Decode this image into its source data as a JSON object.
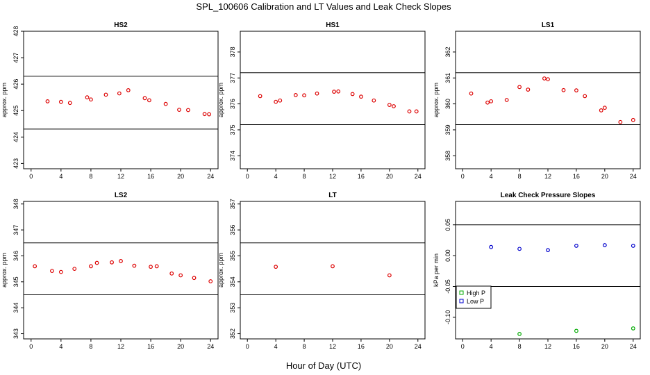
{
  "figure": {
    "title": "SPL_100606  Calibration and LT Values and Leak Check Slopes",
    "xlabel": "Hour of Day (UTC)"
  },
  "chart_data": [
    {
      "type": "scatter",
      "title": "HS2",
      "ylabel": "approx. ppm",
      "xlim": [
        -1,
        25
      ],
      "ylim": [
        422.8,
        428.0
      ],
      "xticks": [
        "0",
        "4",
        "8",
        "12",
        "16",
        "20",
        "24"
      ],
      "yticks": [
        "423",
        "424",
        "425",
        "426",
        "427",
        "428"
      ],
      "hlines": [
        426.3,
        424.3
      ],
      "series": [
        {
          "color": "#dd0000",
          "x": [
            2.2,
            4.0,
            5.2,
            7.5,
            8.0,
            10.0,
            11.8,
            13.0,
            15.2,
            15.8,
            18.0,
            19.8,
            21.0,
            23.2,
            23.8
          ],
          "y": [
            425.35,
            425.33,
            425.29,
            425.5,
            425.42,
            425.6,
            425.65,
            425.77,
            425.47,
            425.39,
            425.25,
            425.03,
            425.02,
            424.87,
            424.86
          ]
        }
      ]
    },
    {
      "type": "scatter",
      "title": "HS1",
      "ylabel": "approx. ppm",
      "xlim": [
        -1,
        25
      ],
      "ylim": [
        373.5,
        378.8
      ],
      "xticks": [
        "0",
        "4",
        "8",
        "12",
        "16",
        "20",
        "24"
      ],
      "yticks": [
        "374",
        "375",
        "376",
        "377",
        "378"
      ],
      "hlines": [
        377.2,
        375.2
      ],
      "series": [
        {
          "color": "#dd0000",
          "x": [
            1.8,
            4.0,
            4.6,
            6.8,
            8.0,
            9.8,
            12.2,
            12.8,
            14.8,
            16.0,
            17.8,
            20.0,
            20.6,
            22.8,
            23.8
          ],
          "y": [
            376.3,
            376.08,
            376.13,
            376.34,
            376.33,
            376.4,
            376.47,
            376.48,
            376.38,
            376.28,
            376.13,
            375.96,
            375.91,
            375.71,
            375.71
          ]
        }
      ]
    },
    {
      "type": "scatter",
      "title": "LS1",
      "ylabel": "approx. ppm",
      "xlim": [
        -1,
        25
      ],
      "ylim": [
        357.5,
        362.8
      ],
      "xticks": [
        "0",
        "4",
        "8",
        "12",
        "16",
        "20",
        "24"
      ],
      "yticks": [
        "358",
        "359",
        "360",
        "361",
        "362"
      ],
      "hlines": [
        361.2,
        359.2
      ],
      "series": [
        {
          "color": "#dd0000",
          "x": [
            1.2,
            3.5,
            4.0,
            6.2,
            8.0,
            9.2,
            11.5,
            12.0,
            14.2,
            16.0,
            17.2,
            19.5,
            20.0,
            22.2,
            24.0
          ],
          "y": [
            360.4,
            360.05,
            360.1,
            360.15,
            360.65,
            360.55,
            360.98,
            360.95,
            360.53,
            360.52,
            360.3,
            359.75,
            359.85,
            359.3,
            359.38
          ]
        }
      ]
    },
    {
      "type": "scatter",
      "title": "LS2",
      "ylabel": "approx. ppm",
      "xlim": [
        -1,
        25
      ],
      "ylim": [
        342.8,
        348.1
      ],
      "xticks": [
        "0",
        "4",
        "8",
        "12",
        "16",
        "20",
        "24"
      ],
      "yticks": [
        "343",
        "344",
        "345",
        "346",
        "347",
        "348"
      ],
      "hlines": [
        346.5,
        344.5
      ],
      "series": [
        {
          "color": "#dd0000",
          "x": [
            0.5,
            2.8,
            4.0,
            5.8,
            8.0,
            8.8,
            10.8,
            12.0,
            13.8,
            16.0,
            16.8,
            18.8,
            20.0,
            21.8,
            24.0
          ],
          "y": [
            345.6,
            345.42,
            345.38,
            345.5,
            345.6,
            345.73,
            345.75,
            345.8,
            345.62,
            345.58,
            345.6,
            345.32,
            345.25,
            345.15,
            345.02
          ]
        }
      ]
    },
    {
      "type": "scatter",
      "title": "LT",
      "ylabel": "approx. ppm",
      "xlim": [
        -1,
        25
      ],
      "ylim": [
        351.8,
        357.1
      ],
      "xticks": [
        "0",
        "4",
        "8",
        "12",
        "16",
        "20",
        "24"
      ],
      "yticks": [
        "352",
        "353",
        "354",
        "355",
        "356",
        "357"
      ],
      "hlines": [
        355.5,
        353.5
      ],
      "series": [
        {
          "color": "#dd0000",
          "x": [
            4.0,
            12.0,
            20.0
          ],
          "y": [
            354.58,
            354.6,
            354.25
          ]
        }
      ]
    },
    {
      "type": "scatter",
      "title": "Leak Check Pressure Slopes",
      "ylabel": "kPa per min",
      "xlim": [
        -1,
        25
      ],
      "ylim": [
        -0.135,
        0.088
      ],
      "xticks": [
        "0",
        "4",
        "8",
        "12",
        "16",
        "20",
        "24"
      ],
      "yticks": [
        "-0.10",
        "-0.05",
        "0.00",
        "0.05"
      ],
      "hlines": [
        0.05,
        -0.05
      ],
      "legend": {
        "position": "left",
        "entries": [
          "High P",
          "Low P"
        ]
      },
      "series": [
        {
          "name": "High P",
          "color": "#00aa00",
          "x": [
            8.0,
            16.0,
            24.0
          ],
          "y": [
            -0.127,
            -0.122,
            -0.118
          ]
        },
        {
          "name": "Low P",
          "color": "#0000cc",
          "x": [
            4.0,
            8.0,
            12.0,
            16.0,
            20.0,
            24.0
          ],
          "y": [
            0.014,
            0.011,
            0.009,
            0.016,
            0.017,
            0.016
          ]
        }
      ]
    }
  ]
}
